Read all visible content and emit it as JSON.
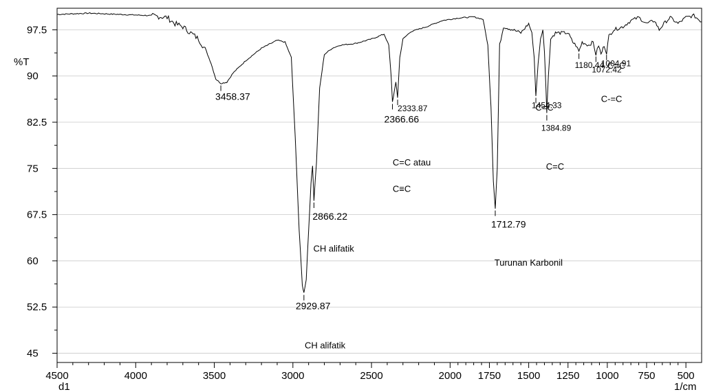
{
  "chart_data": {
    "type": "line",
    "title": "",
    "xlabel": "1/cm",
    "ylabel": "%T",
    "x_unit_label": "1/cm",
    "y_unit_label": "%T",
    "series_label": "d1",
    "xlim": [
      4500,
      400
    ],
    "ylim": [
      43.5,
      101
    ],
    "x_ticks": [
      4500,
      4000,
      3500,
      3000,
      2500,
      2000,
      1750,
      1500,
      1250,
      1000,
      750,
      500
    ],
    "x_tick_labels": [
      "4500",
      "4000",
      "3500",
      "3000",
      "2500",
      "2000",
      "1750",
      "1500",
      "1250",
      "1000",
      "750",
      "500"
    ],
    "y_ticks": [
      45,
      52.5,
      60,
      67.5,
      75,
      82.5,
      90,
      97.5
    ],
    "y_tick_labels": [
      "45",
      "52.5",
      "60",
      "67.5",
      "75",
      "82.5",
      "90",
      "97.5"
    ],
    "grid": true,
    "series": [
      {
        "x": [
          4500,
          4300,
          4100,
          3900,
          3800,
          3750,
          3700,
          3650,
          3600,
          3550,
          3520,
          3490,
          3458.37,
          3420,
          3380,
          3300,
          3200,
          3100,
          3050,
          3010,
          2985,
          2960,
          2940,
          2929.87,
          2915,
          2900,
          2885,
          2875,
          2866.22,
          2850,
          2830,
          2800,
          2750,
          2700,
          2600,
          2500,
          2420,
          2390,
          2375,
          2366.66,
          2355,
          2345,
          2333.87,
          2320,
          2300,
          2250,
          2150,
          2050,
          1950,
          1850,
          1790,
          1760,
          1740,
          1725,
          1712.79,
          1700,
          1685,
          1660,
          1600,
          1550,
          1500,
          1480,
          1465,
          1454.33,
          1440,
          1425,
          1410,
          1400,
          1390,
          1384.89,
          1375,
          1360,
          1330,
          1300,
          1250,
          1220,
          1200,
          1180.44,
          1160,
          1120,
          1090,
          1072.42,
          1055,
          1040,
          1020,
          1004.91,
          990,
          960,
          900,
          850,
          800,
          750,
          700,
          670,
          640,
          600,
          550,
          500,
          450,
          400
        ],
        "y": [
          100.0,
          100.2,
          100.0,
          99.8,
          99.5,
          98.5,
          98.0,
          97.0,
          96.0,
          94.0,
          92.0,
          89.5,
          88.8,
          89.0,
          90.5,
          92.5,
          94.5,
          95.8,
          95.5,
          93.0,
          80.0,
          65.0,
          56.0,
          54.8,
          57.0,
          65.0,
          72.5,
          75.5,
          69.8,
          76.0,
          88.0,
          93.5,
          94.5,
          95.0,
          95.3,
          96.0,
          96.8,
          95.0,
          90.0,
          85.8,
          87.5,
          89.0,
          86.5,
          93.0,
          96.0,
          97.2,
          98.0,
          99.0,
          99.4,
          99.6,
          99.2,
          95.0,
          85.0,
          73.0,
          68.5,
          75.0,
          95.0,
          98.0,
          97.5,
          97.0,
          98.5,
          97.0,
          93.0,
          86.8,
          92.0,
          96.0,
          97.5,
          94.0,
          88.0,
          84.0,
          90.0,
          96.0,
          97.0,
          97.0,
          97.0,
          95.5,
          95.0,
          94.0,
          95.5,
          95.0,
          95.5,
          93.5,
          95.0,
          93.5,
          95.0,
          93.8,
          96.5,
          97.5,
          98.0,
          99.0,
          99.5,
          98.5,
          99.0,
          97.5,
          98.5,
          99.5,
          98.5,
          99.5,
          99.8,
          98.8
        ]
      }
    ],
    "peak_labels": [
      {
        "x": 3458.37,
        "y": 88.8,
        "label": "3458.37"
      },
      {
        "x": 2929.87,
        "y": 54.8,
        "label": "2929.87"
      },
      {
        "x": 2866.22,
        "y": 69.8,
        "label": "2866.22"
      },
      {
        "x": 2366.66,
        "y": 85.8,
        "label": "2366.66"
      },
      {
        "x": 2333.87,
        "y": 86.5,
        "label": "2333.87"
      },
      {
        "x": 1712.79,
        "y": 68.5,
        "label": "1712.79"
      },
      {
        "x": 1454.33,
        "y": 86.8,
        "label": "1454.33"
      },
      {
        "x": 1384.89,
        "y": 84.0,
        "label": "1384.89"
      },
      {
        "x": 1180.44,
        "y": 94.0,
        "label": "1180.44"
      },
      {
        "x": 1072.42,
        "y": 93.5,
        "label": "1072.42"
      },
      {
        "x": 1004.91,
        "y": 93.8,
        "label": "1004.91"
      }
    ],
    "annotations": [
      {
        "x": 2870,
        "y": 61.5,
        "text": "CH alifatik"
      },
      {
        "x": 2925,
        "y": 45.8,
        "text": "CH alifatik"
      },
      {
        "x": 2365,
        "y": 75.5,
        "text": "C=C atau"
      },
      {
        "x": 2365,
        "y": 71.2,
        "text": "C≡C"
      },
      {
        "x": 1718,
        "y": 59.2,
        "text": "Turunan Karbonil"
      },
      {
        "x": 1390,
        "y": 74.8,
        "text": "C=C"
      },
      {
        "x": 1457,
        "y": 84.4,
        "text": "C=C"
      },
      {
        "x": 1040,
        "y": 85.8,
        "text": "C-=C"
      },
      {
        "x": 1000,
        "y": 91.2,
        "text": "C=C"
      }
    ]
  }
}
